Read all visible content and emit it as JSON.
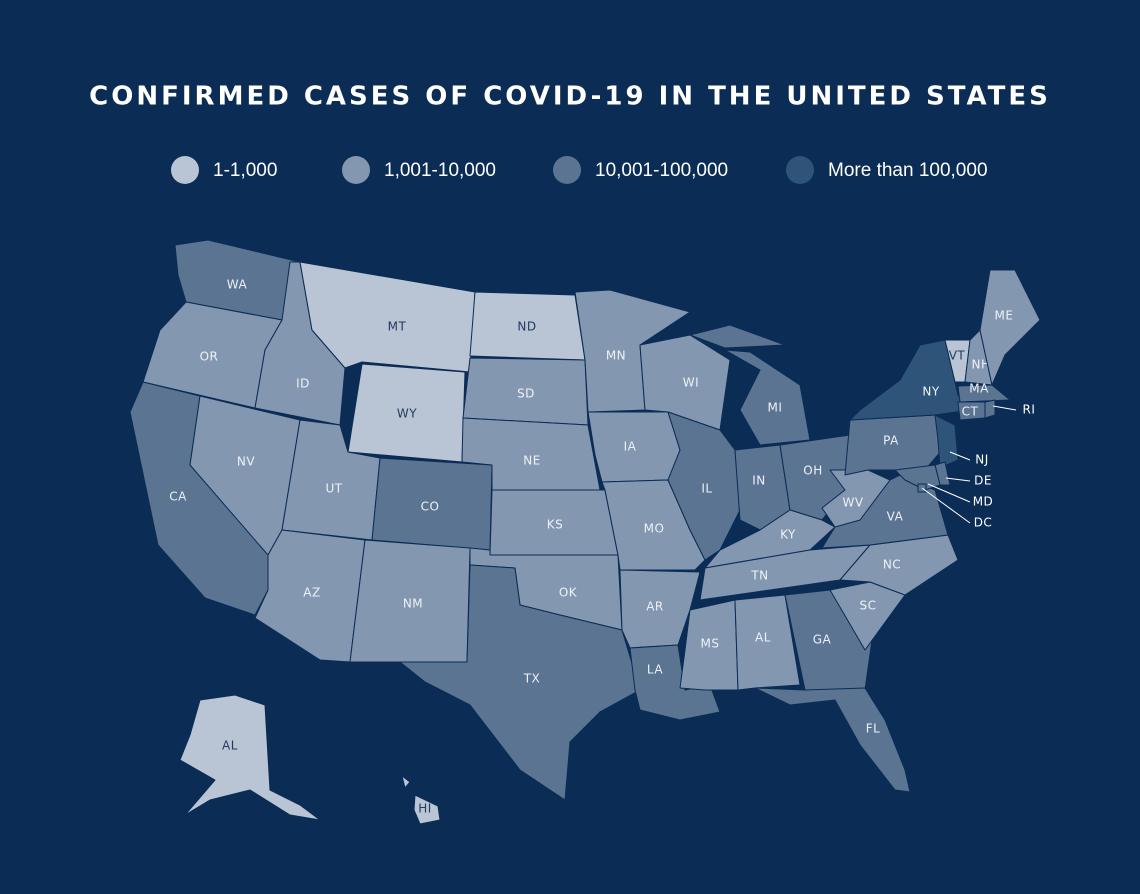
{
  "title": "CONFIRMED CASES OF COVID-19 IN THE UNITED STATES",
  "legend": [
    {
      "label": "1-1,000",
      "color": "#b9c4d4"
    },
    {
      "label": "1,001-10,000",
      "color": "#8397b0"
    },
    {
      "label": "10,001-100,000",
      "color": "#5a7492"
    },
    {
      "label": "More than 100,000",
      "color": "#2e5479"
    }
  ],
  "states": [
    {
      "label": "WA",
      "tier": 2
    },
    {
      "label": "OR",
      "tier": 1
    },
    {
      "label": "CA",
      "tier": 2
    },
    {
      "label": "NV",
      "tier": 1
    },
    {
      "label": "ID",
      "tier": 1
    },
    {
      "label": "MT",
      "tier": 0
    },
    {
      "label": "WY",
      "tier": 0
    },
    {
      "label": "UT",
      "tier": 1
    },
    {
      "label": "CO",
      "tier": 2
    },
    {
      "label": "AZ",
      "tier": 1
    },
    {
      "label": "NM",
      "tier": 1
    },
    {
      "label": "ND",
      "tier": 0
    },
    {
      "label": "SD",
      "tier": 1
    },
    {
      "label": "NE",
      "tier": 1
    },
    {
      "label": "KS",
      "tier": 1
    },
    {
      "label": "OK",
      "tier": 1
    },
    {
      "label": "TX",
      "tier": 2
    },
    {
      "label": "MN",
      "tier": 1
    },
    {
      "label": "IA",
      "tier": 1
    },
    {
      "label": "MO",
      "tier": 1
    },
    {
      "label": "AR",
      "tier": 1
    },
    {
      "label": "LA",
      "tier": 2
    },
    {
      "label": "WI",
      "tier": 1
    },
    {
      "label": "IL",
      "tier": 2
    },
    {
      "label": "IN",
      "tier": 2
    },
    {
      "label": "MI",
      "tier": 2
    },
    {
      "label": "OH",
      "tier": 2
    },
    {
      "label": "KY",
      "tier": 1
    },
    {
      "label": "TN",
      "tier": 1
    },
    {
      "label": "MS",
      "tier": 1
    },
    {
      "label": "AL",
      "tier": 1
    },
    {
      "label": "GA",
      "tier": 2
    },
    {
      "label": "FL",
      "tier": 2
    },
    {
      "label": "SC",
      "tier": 1
    },
    {
      "label": "NC",
      "tier": 1
    },
    {
      "label": "VA",
      "tier": 2
    },
    {
      "label": "WV",
      "tier": 1
    },
    {
      "label": "PA",
      "tier": 2
    },
    {
      "label": "NY",
      "tier": 3
    },
    {
      "label": "VT",
      "tier": 0
    },
    {
      "label": "NH",
      "tier": 1
    },
    {
      "label": "ME",
      "tier": 1
    },
    {
      "label": "MA",
      "tier": 2
    },
    {
      "label": "CT",
      "tier": 2
    },
    {
      "label": "RI",
      "tier": 2
    },
    {
      "label": "NJ",
      "tier": 3
    },
    {
      "label": "DE",
      "tier": 2
    },
    {
      "label": "MD",
      "tier": 2
    },
    {
      "label": "DC",
      "tier": 2
    },
    {
      "label": "AL",
      "tier": 0
    },
    {
      "label": "HI",
      "tier": 0
    }
  ]
}
